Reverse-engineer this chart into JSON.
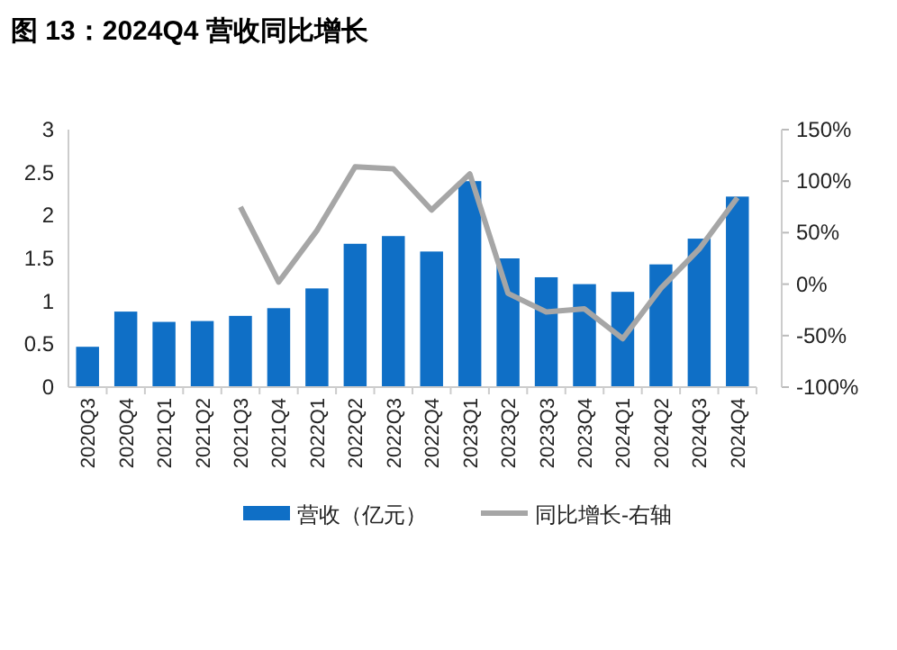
{
  "chart_data": {
    "type": "bar",
    "title": "图 13：2024Q4 营收同比增长",
    "categories": [
      "2020Q3",
      "2020Q4",
      "2021Q1",
      "2021Q2",
      "2021Q3",
      "2021Q4",
      "2022Q1",
      "2022Q2",
      "2022Q3",
      "2022Q4",
      "2023Q1",
      "2023Q2",
      "2023Q3",
      "2023Q4",
      "2024Q1",
      "2024Q2",
      "2024Q3",
      "2024Q4"
    ],
    "series": [
      {
        "name": "营收（亿元）",
        "color": "#0f6fc6",
        "values": [
          0.47,
          0.88,
          0.76,
          0.77,
          0.83,
          0.92,
          1.15,
          1.67,
          1.76,
          1.58,
          2.4,
          1.5,
          1.28,
          1.2,
          1.11,
          1.43,
          1.73,
          2.22
        ]
      },
      {
        "name": "同比增长-右轴",
        "type": "line",
        "axis": "y2",
        "color": "#a6a6a6",
        "values": [
          null,
          null,
          null,
          null,
          75,
          2,
          52,
          114,
          112,
          72,
          107,
          -9,
          -27,
          -24,
          -53,
          -4,
          34,
          84
        ]
      }
    ],
    "ylim": [
      0,
      3
    ],
    "yticks": [
      0,
      0.5,
      1,
      1.5,
      2,
      2.5,
      3
    ],
    "y2lim": [
      -100,
      150
    ],
    "y2ticks": [
      {
        "value": -100,
        "label": "-100%"
      },
      {
        "value": -50,
        "label": "-50%"
      },
      {
        "value": 0,
        "label": "0%"
      },
      {
        "value": 50,
        "label": "50%"
      },
      {
        "value": 100,
        "label": "100%"
      },
      {
        "value": 150,
        "label": "150%"
      }
    ],
    "legend": "bottom",
    "grid": false
  }
}
